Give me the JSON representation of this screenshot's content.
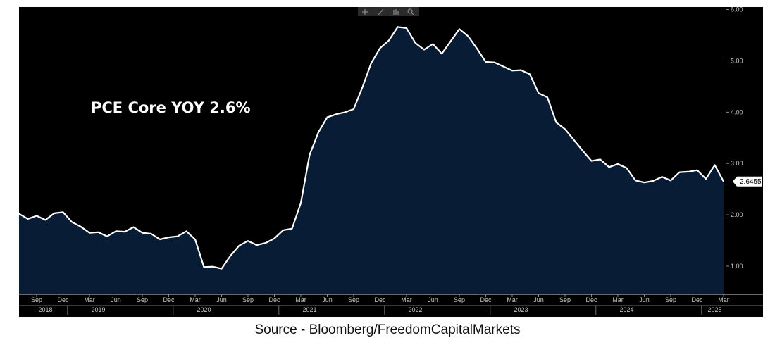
{
  "chart_data": {
    "type": "area",
    "annotation": "PCE Core YOY 2.6%",
    "last_value_label": "2.6455",
    "ylim": [
      0.45,
      6.05
    ],
    "yticks": [
      "1.00",
      "2.00",
      "3.00",
      "4.00",
      "5.00",
      "6.00"
    ],
    "grid": false,
    "colors": {
      "fill": "#081c36",
      "line": "#ffffff",
      "background": "#000000",
      "axis_text": "#c8c8c8"
    },
    "month_labels": [
      "Sep",
      "Dec",
      "Mar",
      "Jun",
      "Sep",
      "Dec",
      "Mar",
      "Jun",
      "Sep",
      "Dec",
      "Mar",
      "Jun",
      "Sep",
      "Dec",
      "Mar",
      "Jun",
      "Sep",
      "Dec",
      "Mar",
      "Jun",
      "Sep",
      "Dec",
      "Mar",
      "Jun",
      "Sep",
      "Dec",
      "Mar"
    ],
    "year_labels": [
      "2018",
      "2019",
      "2020",
      "2021",
      "2022",
      "2023",
      "2024",
      "2025"
    ],
    "x": [
      "2018-07",
      "2018-08",
      "2018-09",
      "2018-10",
      "2018-11",
      "2018-12",
      "2019-01",
      "2019-02",
      "2019-03",
      "2019-04",
      "2019-05",
      "2019-06",
      "2019-07",
      "2019-08",
      "2019-09",
      "2019-10",
      "2019-11",
      "2019-12",
      "2020-01",
      "2020-02",
      "2020-03",
      "2020-04",
      "2020-05",
      "2020-06",
      "2020-07",
      "2020-08",
      "2020-09",
      "2020-10",
      "2020-11",
      "2020-12",
      "2021-01",
      "2021-02",
      "2021-03",
      "2021-04",
      "2021-05",
      "2021-06",
      "2021-07",
      "2021-08",
      "2021-09",
      "2021-10",
      "2021-11",
      "2021-12",
      "2022-01",
      "2022-02",
      "2022-03",
      "2022-04",
      "2022-05",
      "2022-06",
      "2022-07",
      "2022-08",
      "2022-09",
      "2022-10",
      "2022-11",
      "2022-12",
      "2023-01",
      "2023-02",
      "2023-03",
      "2023-04",
      "2023-05",
      "2023-06",
      "2023-07",
      "2023-08",
      "2023-09",
      "2023-10",
      "2023-11",
      "2023-12",
      "2024-01",
      "2024-02",
      "2024-03",
      "2024-04",
      "2024-05",
      "2024-06",
      "2024-07",
      "2024-08",
      "2024-09",
      "2024-10",
      "2024-11",
      "2024-12",
      "2025-01",
      "2025-02",
      "2025-03"
    ],
    "series": [
      {
        "values": [
          2.02,
          1.92,
          1.98,
          1.9,
          2.03,
          2.05,
          1.86,
          1.77,
          1.65,
          1.66,
          1.58,
          1.68,
          1.67,
          1.76,
          1.65,
          1.63,
          1.52,
          1.56,
          1.58,
          1.68,
          1.52,
          0.98,
          0.99,
          0.95,
          1.2,
          1.4,
          1.49,
          1.41,
          1.45,
          1.54,
          1.7,
          1.73,
          2.23,
          3.17,
          3.61,
          3.9,
          3.96,
          4.0,
          4.06,
          4.49,
          4.96,
          5.25,
          5.4,
          5.66,
          5.64,
          5.35,
          5.22,
          5.33,
          5.14,
          5.38,
          5.62,
          5.48,
          5.24,
          4.98,
          4.97,
          4.89,
          4.81,
          4.82,
          4.74,
          4.37,
          4.29,
          3.8,
          3.67,
          3.46,
          3.25,
          3.05,
          3.08,
          2.93,
          2.99,
          2.91,
          2.67,
          2.63,
          2.66,
          2.74,
          2.67,
          2.83,
          2.84,
          2.87,
          2.7,
          2.97,
          2.65
        ]
      }
    ]
  }
}
